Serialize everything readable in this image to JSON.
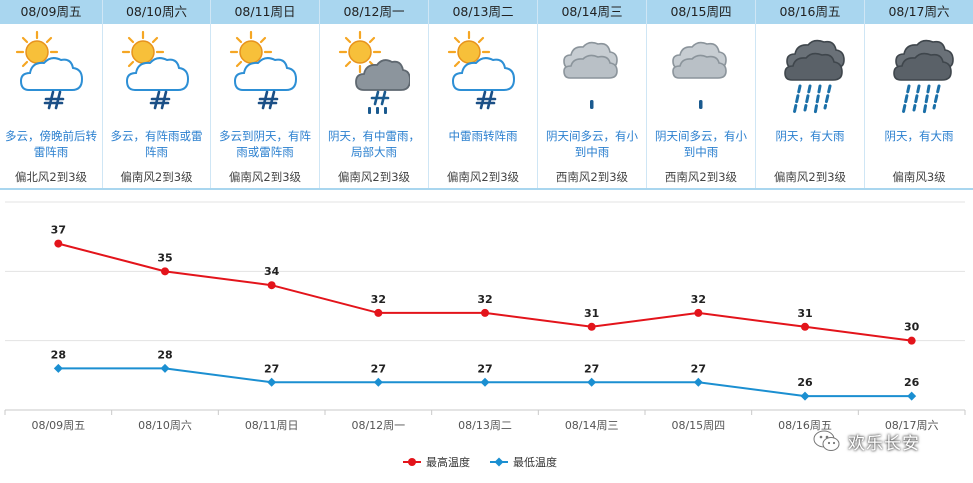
{
  "forecast": {
    "days": [
      {
        "date": "08/09周五",
        "icon": "partly-cloudy-thunderstorm-icon",
        "desc": "多云，傍晚前后转雷阵雨",
        "wind": "偏北风2到3级"
      },
      {
        "date": "08/10周六",
        "icon": "partly-cloudy-thunderstorm-icon",
        "desc": "多云，有阵雨或雷阵雨",
        "wind": "偏南风2到3级"
      },
      {
        "date": "08/11周日",
        "icon": "partly-cloudy-thunderstorm-icon",
        "desc": "多云到阴天，有阵雨或雷阵雨",
        "wind": "偏南风2到3级"
      },
      {
        "date": "08/12周一",
        "icon": "sun-dark-cloud-thunder-rain-icon",
        "desc": "阴天，有中雷雨，局部大雨",
        "wind": "偏南风2到3级"
      },
      {
        "date": "08/13周二",
        "icon": "partly-cloudy-thunderstorm-icon",
        "desc": "中雷雨转阵雨",
        "wind": "偏南风2到3级"
      },
      {
        "date": "08/14周三",
        "icon": "cloud-light-rain-icon",
        "desc": "阴天间多云，有小到中雨",
        "wind": "西南风2到3级"
      },
      {
        "date": "08/15周四",
        "icon": "cloud-light-rain-icon",
        "desc": "阴天间多云，有小到中雨",
        "wind": "西南风2到3级"
      },
      {
        "date": "08/16周五",
        "icon": "dark-cloud-heavy-rain-icon",
        "desc": "阴天，有大雨",
        "wind": "偏南风2到3级"
      },
      {
        "date": "08/17周六",
        "icon": "dark-cloud-heavy-rain-icon",
        "desc": "阴天，有大雨",
        "wind": "偏南风3级"
      }
    ]
  },
  "chart_data": {
    "type": "line",
    "categories": [
      "08/09周五",
      "08/10周六",
      "08/11周日",
      "08/12周一",
      "08/13周二",
      "08/14周三",
      "08/15周四",
      "08/16周五",
      "08/17周六"
    ],
    "series": [
      {
        "name": "最高温度",
        "color": "#e3141b",
        "values": [
          37,
          35,
          34,
          32,
          32,
          31,
          32,
          31,
          30
        ]
      },
      {
        "name": "最低温度",
        "color": "#1b8fd1",
        "values": [
          28,
          28,
          27,
          27,
          27,
          27,
          27,
          26,
          26
        ]
      }
    ],
    "ylim": [
      25,
      40
    ],
    "grid": true,
    "legend": "bottom-center",
    "title": "",
    "xlabel": "",
    "ylabel": ""
  },
  "colors": {
    "header_bg": "#a9d6ef",
    "desc_text": "#2a7fcf",
    "high": "#e3141b",
    "low": "#1b8fd1"
  },
  "watermark": {
    "text": "欢乐长安",
    "icon": "wechat-logo-icon"
  }
}
